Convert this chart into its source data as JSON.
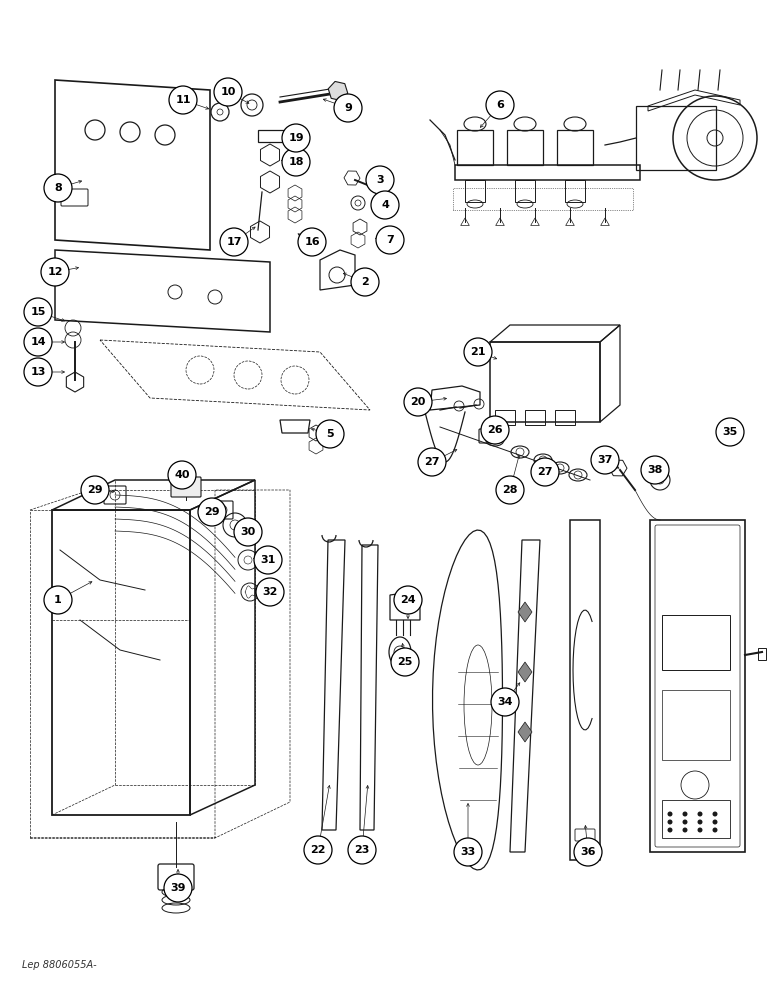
{
  "footer_text": "Lep 8806055A-",
  "background_color": "#ffffff",
  "line_color": "#1a1a1a",
  "figsize": [
    7.72,
    10.0
  ],
  "dpi": 100
}
